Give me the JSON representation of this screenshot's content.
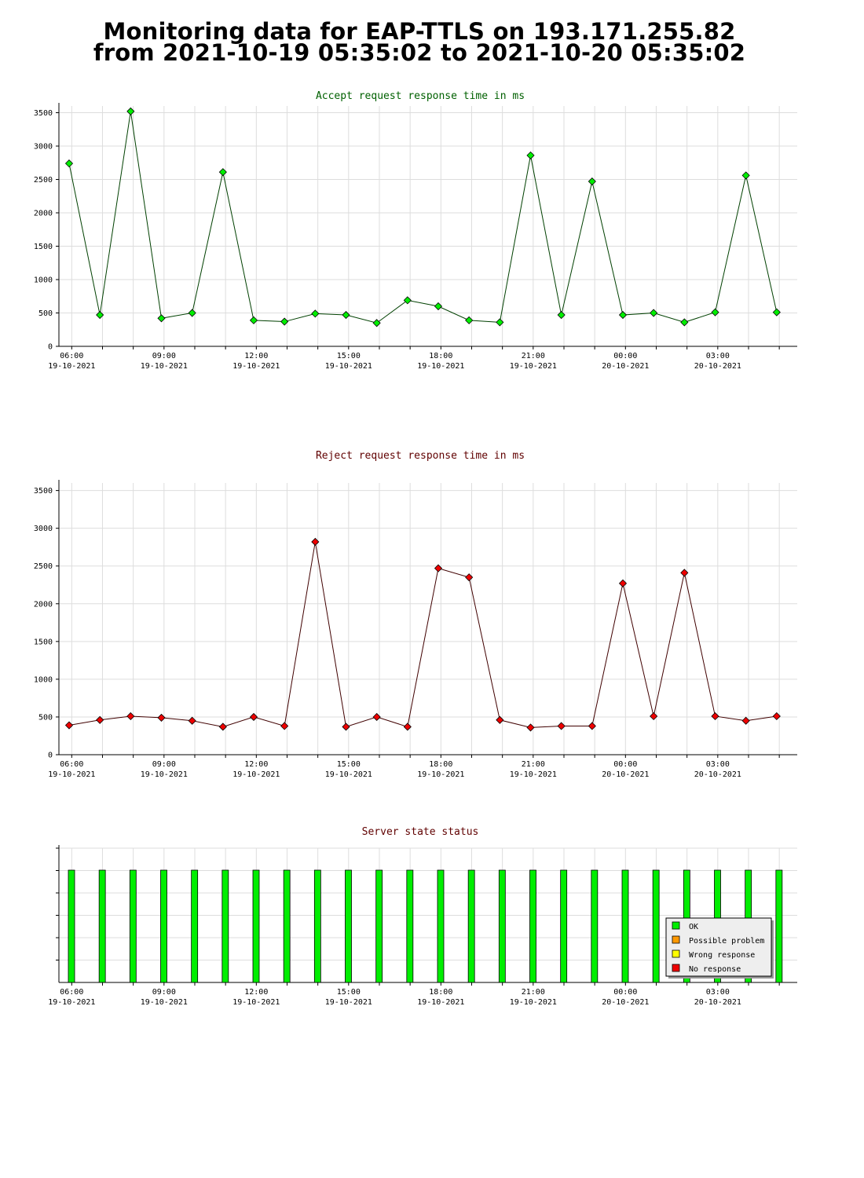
{
  "page_title": {
    "line1": "Monitoring data for EAP-TTLS on 193.171.255.82",
    "line2": "from 2021-10-19 05:35:02 to 2021-10-20 05:35:02"
  },
  "x_ticks": [
    {
      "time": "06:00",
      "date": "19-10-2021"
    },
    {
      "time": "09:00",
      "date": "19-10-2021"
    },
    {
      "time": "12:00",
      "date": "19-10-2021"
    },
    {
      "time": "15:00",
      "date": "19-10-2021"
    },
    {
      "time": "18:00",
      "date": "19-10-2021"
    },
    {
      "time": "21:00",
      "date": "19-10-2021"
    },
    {
      "time": "00:00",
      "date": "20-10-2021"
    },
    {
      "time": "03:00",
      "date": "20-10-2021"
    }
  ],
  "chart_data": [
    {
      "type": "line",
      "title": "Accept request response time in ms",
      "title_color": "#006000",
      "line_color": "#004000",
      "marker_color": "#00ee00",
      "xlim": [
        "2021-10-19 05:35",
        "2021-10-20 05:35"
      ],
      "ylim": [
        0,
        3600
      ],
      "yticks": [
        0,
        500,
        1000,
        1500,
        2000,
        2500,
        3000,
        3500
      ],
      "grid": true,
      "x": [
        "2021-10-19 05:35",
        "2021-10-19 06:35",
        "2021-10-19 07:35",
        "2021-10-19 08:35",
        "2021-10-19 09:35",
        "2021-10-19 10:35",
        "2021-10-19 11:35",
        "2021-10-19 12:35",
        "2021-10-19 13:35",
        "2021-10-19 14:35",
        "2021-10-19 15:35",
        "2021-10-19 16:35",
        "2021-10-19 17:35",
        "2021-10-19 18:35",
        "2021-10-19 19:35",
        "2021-10-19 20:35",
        "2021-10-19 21:35",
        "2021-10-19 22:35",
        "2021-10-19 23:35",
        "2021-10-20 00:35",
        "2021-10-20 01:35",
        "2021-10-20 02:35",
        "2021-10-20 03:35",
        "2021-10-20 04:35"
      ],
      "series": [
        {
          "values": [
            2740,
            470,
            3520,
            420,
            500,
            2610,
            390,
            370,
            490,
            470,
            350,
            690,
            600,
            390,
            360,
            2860,
            470,
            2470,
            470,
            500,
            360,
            510,
            2560,
            510
          ]
        }
      ]
    },
    {
      "type": "line",
      "title": "Reject request response time in ms",
      "title_color": "#600000",
      "line_color": "#400000",
      "marker_color": "#ee0000",
      "xlim": [
        "2021-10-19 05:35",
        "2021-10-20 05:35"
      ],
      "ylim": [
        0,
        3600
      ],
      "yticks": [
        0,
        500,
        1000,
        1500,
        2000,
        2500,
        3000,
        3500
      ],
      "grid": true,
      "x": [
        "2021-10-19 05:35",
        "2021-10-19 06:35",
        "2021-10-19 07:35",
        "2021-10-19 08:35",
        "2021-10-19 09:35",
        "2021-10-19 10:35",
        "2021-10-19 11:35",
        "2021-10-19 12:35",
        "2021-10-19 13:35",
        "2021-10-19 14:35",
        "2021-10-19 15:35",
        "2021-10-19 16:35",
        "2021-10-19 17:35",
        "2021-10-19 18:35",
        "2021-10-19 19:35",
        "2021-10-19 20:35",
        "2021-10-19 21:35",
        "2021-10-19 22:35",
        "2021-10-19 23:35",
        "2021-10-20 00:35",
        "2021-10-20 01:35",
        "2021-10-20 02:35",
        "2021-10-20 03:35",
        "2021-10-20 04:35"
      ],
      "series": [
        {
          "values": [
            390,
            460,
            510,
            490,
            450,
            370,
            500,
            380,
            2820,
            370,
            500,
            370,
            2470,
            2350,
            460,
            360,
            380,
            380,
            2270,
            510,
            2410,
            510,
            450,
            510
          ]
        }
      ]
    },
    {
      "type": "bar",
      "title": "Server state status",
      "title_color": "#600000",
      "xlim": [
        "2021-10-19 05:35",
        "2021-10-20 05:35"
      ],
      "x": [
        "2021-10-19 05:35",
        "2021-10-19 06:35",
        "2021-10-19 07:35",
        "2021-10-19 08:35",
        "2021-10-19 09:35",
        "2021-10-19 10:35",
        "2021-10-19 11:35",
        "2021-10-19 12:35",
        "2021-10-19 13:35",
        "2021-10-19 14:35",
        "2021-10-19 15:35",
        "2021-10-19 16:35",
        "2021-10-19 17:35",
        "2021-10-19 18:35",
        "2021-10-19 19:35",
        "2021-10-19 20:35",
        "2021-10-19 21:35",
        "2021-10-19 22:35",
        "2021-10-19 23:35",
        "2021-10-20 00:35",
        "2021-10-20 01:35",
        "2021-10-20 02:35",
        "2021-10-20 03:35",
        "2021-10-20 04:35"
      ],
      "states": [
        "OK",
        "OK",
        "OK",
        "OK",
        "OK",
        "OK",
        "OK",
        "OK",
        "OK",
        "OK",
        "OK",
        "OK",
        "OK",
        "OK",
        "OK",
        "OK",
        "OK",
        "OK",
        "OK",
        "OK",
        "OK",
        "OK",
        "OK",
        "OK"
      ],
      "legend_position": "bottom-right",
      "legend": [
        {
          "label": "OK",
          "color": "#00ee00"
        },
        {
          "label": "Possible problem",
          "color": "#ff9900"
        },
        {
          "label": "Wrong response",
          "color": "#ffff00"
        },
        {
          "label": "No response",
          "color": "#ee0000"
        }
      ]
    }
  ]
}
